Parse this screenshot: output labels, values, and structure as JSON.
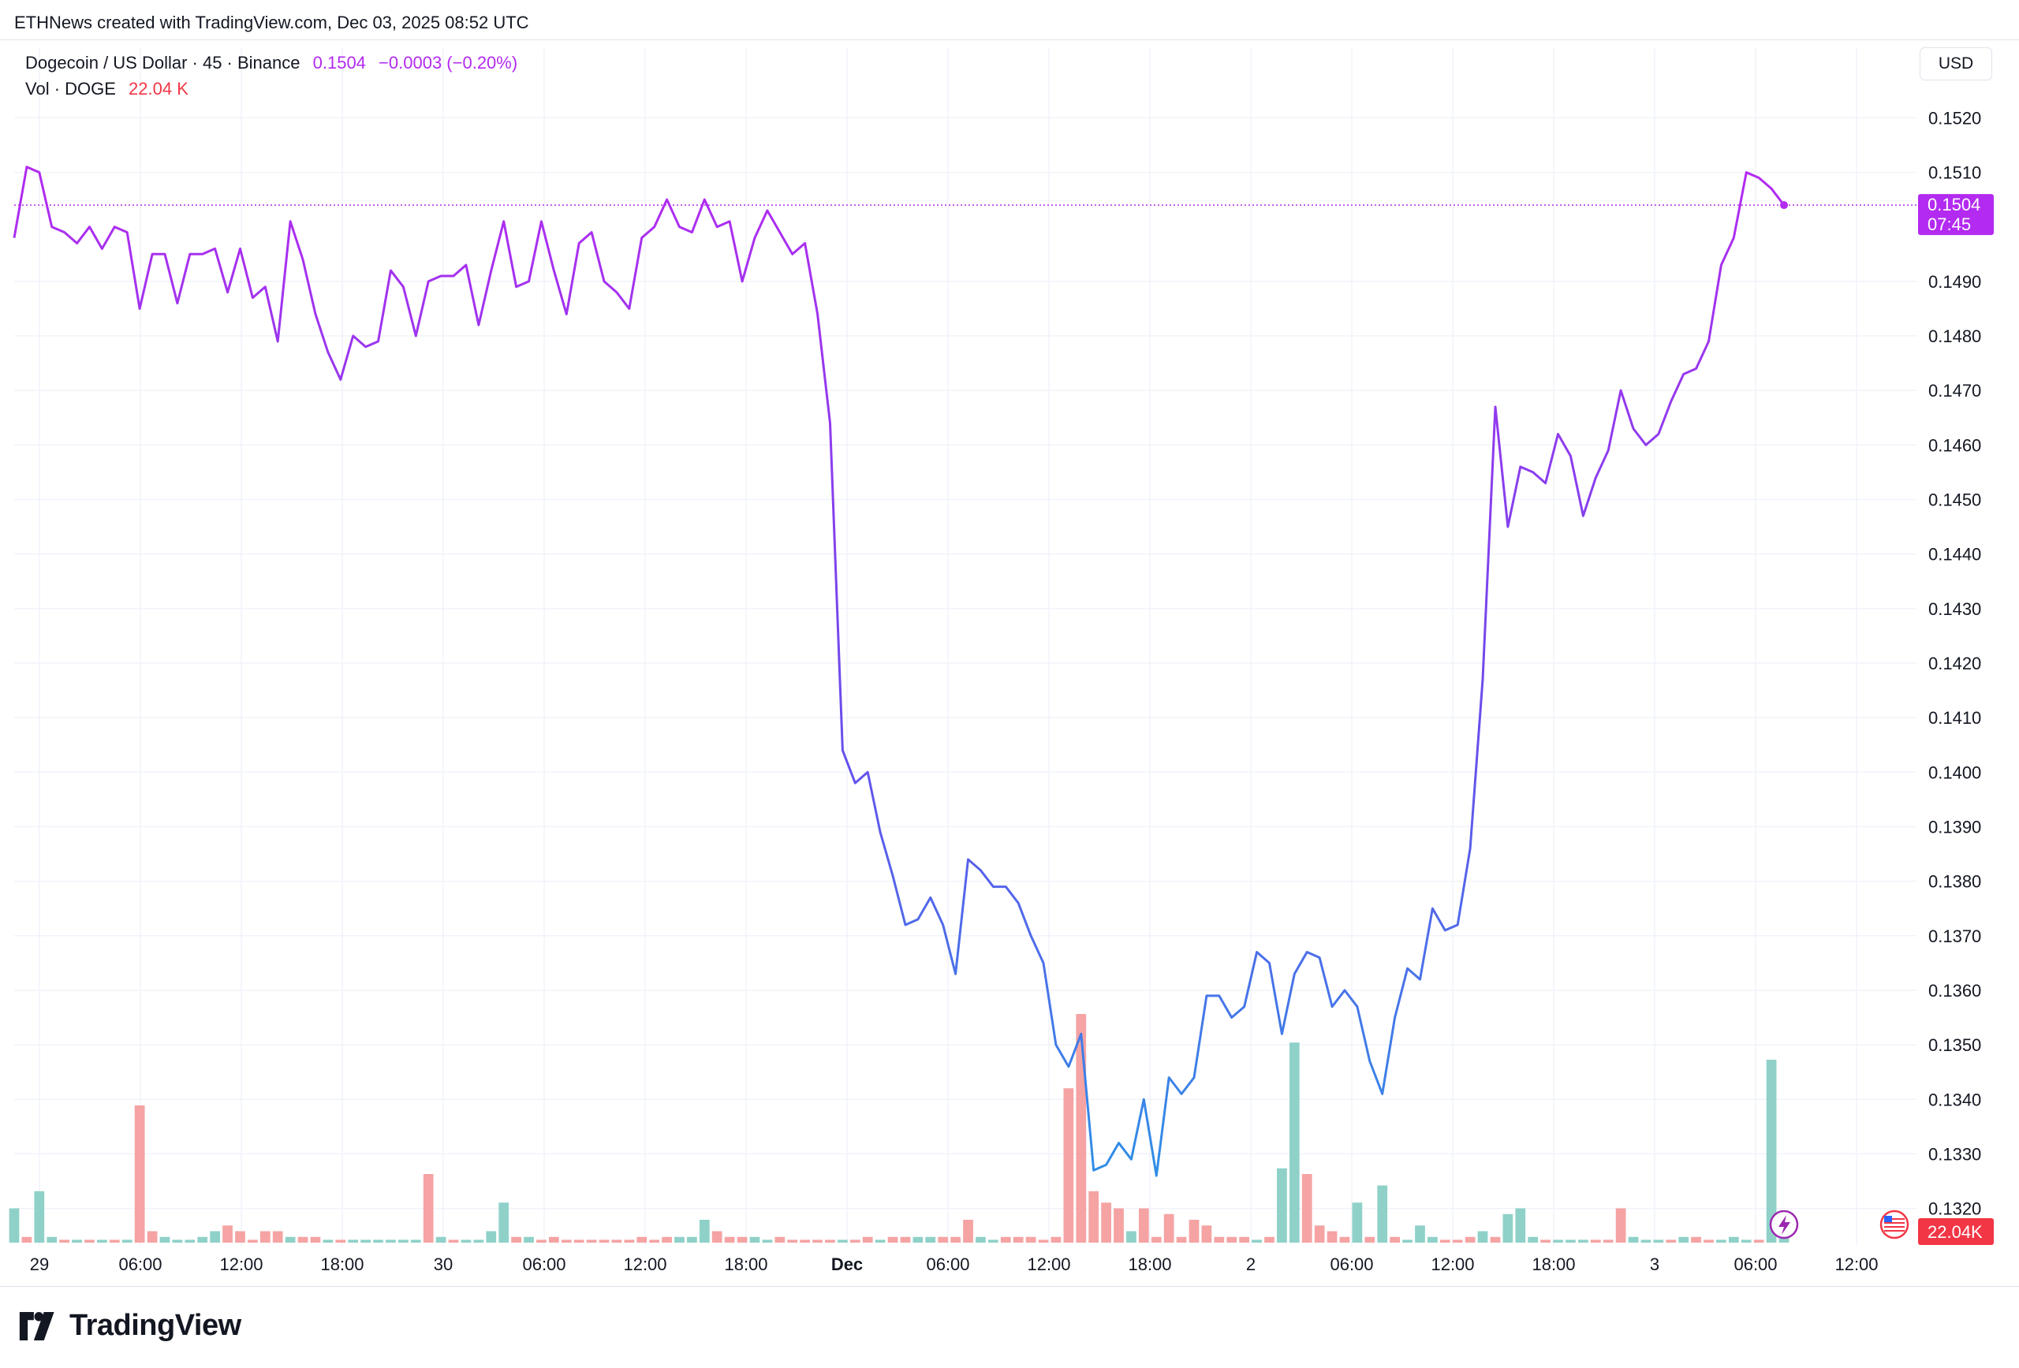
{
  "header": {
    "caption": "ETHNews created with TradingView.com, Dec 03, 2025 08:52 UTC"
  },
  "legend": {
    "symbol": "Dogecoin / US Dollar · 45 · Binance",
    "last_price": "0.1504",
    "change": "−0.0003 (−0.20%)",
    "vol_label": "Vol · DOGE",
    "vol_value": "22.04 K"
  },
  "currency_button": "USD",
  "price_tag": {
    "price": "0.1504",
    "countdown": "07:45"
  },
  "vol_tag": "22.04K",
  "brand": {
    "logo_text": "TradingView"
  },
  "colors": {
    "line_high": "#b32af0",
    "line_low": "#2f8fe6",
    "vol_up": "#8fd1c8",
    "vol_down": "#f5a3a3",
    "tag_price": "#b32af0",
    "tag_vol": "#f23645"
  },
  "chart_data": {
    "type": "line",
    "series": [
      {
        "values": [
          0.1498,
          0.1511,
          0.151,
          0.15,
          0.1499,
          0.1497,
          0.15,
          0.1496,
          0.15,
          0.1499,
          0.1485,
          0.1495,
          0.1495,
          0.1486,
          0.1495,
          0.1495,
          0.1496,
          0.1488,
          0.1496,
          0.1487,
          0.1489,
          0.1479,
          0.1501,
          0.1494,
          0.1484,
          0.1477,
          0.1472,
          0.148,
          0.1478,
          0.1479,
          0.1492,
          0.1489,
          0.148,
          0.149,
          0.1491,
          0.1491,
          0.1493,
          0.1482,
          0.1492,
          0.1501,
          0.1489,
          0.149,
          0.1501,
          0.1492,
          0.1484,
          0.1497,
          0.1499,
          0.149,
          0.1488,
          0.1485,
          0.1498,
          0.15,
          0.1505,
          0.15,
          0.1499,
          0.1505,
          0.15,
          0.1501,
          0.149,
          0.1498,
          0.1503,
          0.1499,
          0.1495,
          0.1497,
          0.1484,
          0.1464,
          0.1404,
          0.1398,
          0.14,
          0.1389,
          0.1381,
          0.1372,
          0.1373,
          0.1377,
          0.1372,
          0.1363,
          0.1384,
          0.1382,
          0.1379,
          0.1379,
          0.1376,
          0.137,
          0.1365,
          0.135,
          0.1346,
          0.1352,
          0.1327,
          0.1328,
          0.1332,
          0.1329,
          0.134,
          0.1326,
          0.1344,
          0.1341,
          0.1344,
          0.1359,
          0.1359,
          0.1355,
          0.1357,
          0.1367,
          0.1365,
          0.1352,
          0.1363,
          0.1367,
          0.1366,
          0.1357,
          0.136,
          0.1357,
          0.1347,
          0.1341,
          0.1355,
          0.1364,
          0.1362,
          0.1375,
          0.1371,
          0.1372,
          0.1386,
          0.1417,
          0.1467,
          0.1445,
          0.1456,
          0.1455,
          0.1453,
          0.1462,
          0.1458,
          0.1447,
          0.1454,
          0.1459,
          0.147,
          0.1463,
          0.146,
          0.1462,
          0.1468,
          0.1473,
          0.1474,
          0.1479,
          0.1493,
          0.1498,
          0.151,
          0.1509,
          0.1507,
          0.1504
        ]
      }
    ],
    "volume": [
      6,
      1,
      9,
      1,
      0.5,
      0.5,
      0.5,
      0.5,
      0.5,
      0.5,
      24,
      2,
      1,
      0.5,
      0.5,
      1,
      2,
      3,
      2,
      0.5,
      2,
      2,
      1,
      1,
      1,
      0.5,
      0.5,
      0.5,
      0.5,
      0.5,
      0.5,
      0.5,
      0.5,
      12,
      1,
      0.5,
      0.5,
      0.5,
      2,
      7,
      1,
      1,
      0.5,
      1,
      0.5,
      0.5,
      0.5,
      0.5,
      0.5,
      0.5,
      1,
      0.5,
      1,
      1,
      1,
      4,
      2,
      1,
      1,
      1,
      0.5,
      1,
      0.5,
      0.5,
      0.5,
      0.5,
      0.5,
      0.5,
      1,
      0.5,
      1,
      1,
      1,
      1,
      1,
      1,
      4,
      1,
      0.5,
      1,
      1,
      1,
      0.5,
      1,
      27,
      40,
      9,
      7,
      6,
      2,
      6,
      1,
      5,
      1,
      4,
      3,
      1,
      1,
      1,
      0.5,
      1,
      13,
      35,
      12,
      3,
      2,
      1,
      7,
      1,
      10,
      1,
      0.5,
      3,
      1,
      0.5,
      0.5,
      1,
      2,
      1,
      5,
      6,
      1,
      0.5,
      0.5,
      0.5,
      0.5,
      0.5,
      0.5,
      6,
      1,
      0.5,
      0.5,
      0.5,
      1,
      1,
      0.5,
      0.5,
      1,
      0.5,
      0.5,
      32,
      1,
      1,
      2,
      17,
      12,
      3,
      2,
      5,
      4,
      3,
      1,
      0.5,
      1,
      1,
      0.5,
      0.5,
      1,
      0.5,
      0.5,
      0.5,
      1,
      0.5,
      0.5,
      0.5,
      0.5,
      1,
      0.5,
      0.5,
      0.5,
      0.5,
      0.5,
      0.5,
      0.5,
      0.5,
      0.5,
      0.5,
      0.5,
      0.5,
      0.5,
      0.5,
      0.5,
      0.5,
      0.5,
      0.5,
      0.5,
      0.5,
      0.5,
      0.5,
      0.5,
      0.5,
      0.5,
      0.5,
      0.5
    ],
    "volume_direction": [
      "up",
      "down",
      "up",
      "up",
      "down",
      "up",
      "down",
      "up",
      "down",
      "up",
      "down",
      "down",
      "up",
      "up",
      "up",
      "up",
      "up",
      "down",
      "down",
      "down",
      "down",
      "down",
      "up",
      "down",
      "down",
      "up",
      "down",
      "up",
      "up",
      "up",
      "up",
      "up",
      "up",
      "down",
      "up",
      "down",
      "up",
      "up",
      "up",
      "up",
      "down",
      "up",
      "down",
      "down",
      "down",
      "down",
      "down",
      "down",
      "down",
      "down",
      "down",
      "down",
      "down",
      "up",
      "up",
      "up",
      "down",
      "down",
      "down",
      "up",
      "up",
      "down",
      "down",
      "down",
      "down",
      "down",
      "up",
      "down",
      "down",
      "up",
      "down",
      "down",
      "up",
      "up",
      "down",
      "down",
      "down",
      "up",
      "up",
      "down",
      "down",
      "down",
      "down",
      "down",
      "down",
      "down",
      "down",
      "down",
      "down",
      "up",
      "down",
      "down",
      "down",
      "down",
      "down",
      "down",
      "down",
      "down",
      "down",
      "up",
      "down",
      "up",
      "up",
      "down",
      "down",
      "down",
      "down",
      "up",
      "down",
      "up",
      "down",
      "up",
      "up",
      "up",
      "down",
      "down",
      "down",
      "up",
      "down",
      "up",
      "up",
      "up",
      "down",
      "up",
      "up",
      "up",
      "down",
      "down",
      "down",
      "up",
      "up",
      "up",
      "down",
      "up",
      "down",
      "down",
      "up",
      "up",
      "up",
      "down",
      "up",
      "up",
      "up",
      "up",
      "down",
      "down",
      "up",
      "up",
      "up",
      "down",
      "up",
      "up",
      "up",
      "up",
      "up",
      "down",
      "down",
      "down",
      "up",
      "down",
      "up",
      "down",
      "down",
      "up",
      "up",
      "up",
      "up",
      "down",
      "up",
      "up",
      "down",
      "down",
      "down",
      "up",
      "up",
      "up",
      "up",
      "up",
      "up",
      "up",
      "up",
      "up",
      "up",
      "up",
      "up",
      "up",
      "up",
      "up",
      "up",
      "up",
      "up",
      "up",
      "up",
      "up",
      "up",
      "up",
      "up",
      "up",
      "up",
      "up",
      "up",
      "up"
    ],
    "y_ticks": [
      "0.1520",
      "0.1510",
      "0.1490",
      "0.1480",
      "0.1470",
      "0.1460",
      "0.1450",
      "0.1440",
      "0.1430",
      "0.1420",
      "0.1410",
      "0.1400",
      "0.1390",
      "0.1380",
      "0.1370",
      "0.1360",
      "0.1350",
      "0.1340",
      "0.1330",
      "0.1320"
    ],
    "x_ticks": [
      "29",
      "06:00",
      "12:00",
      "18:00",
      "30",
      "06:00",
      "12:00",
      "18:00",
      "Dec",
      "06:00",
      "12:00",
      "18:00",
      "2",
      "06:00",
      "12:00",
      "18:00",
      "3",
      "06:00",
      "12:00"
    ],
    "ylim": [
      0.1313,
      0.1527
    ],
    "current_price": 0.1504
  }
}
